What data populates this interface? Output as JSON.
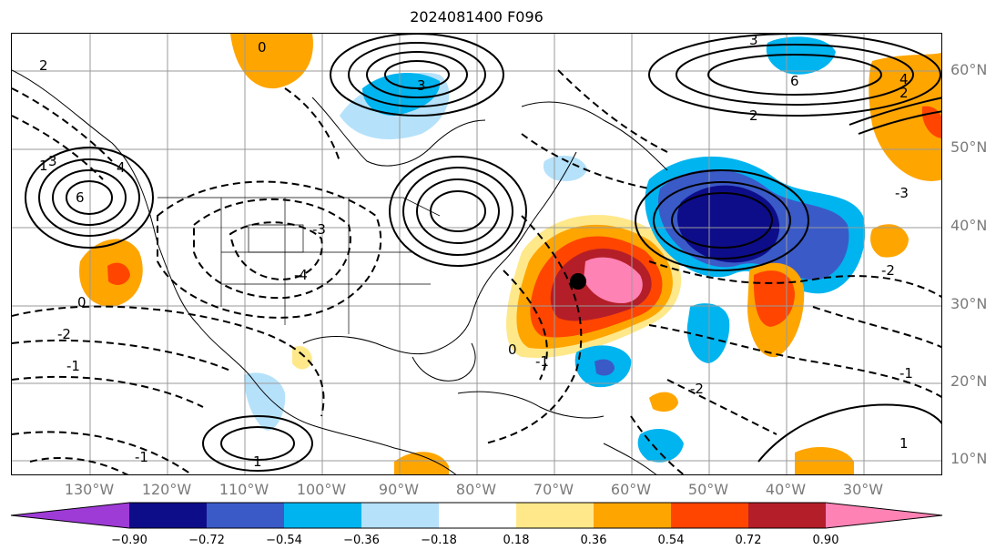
{
  "title": "2024081400 F096",
  "map": {
    "projection": "PlateCarree",
    "gridlines": true,
    "latitude_labels": [
      "60°N",
      "50°N",
      "40°N",
      "30°N",
      "20°N",
      "10°N"
    ],
    "longitude_labels": [
      "130°W",
      "120°W",
      "110°W",
      "100°W",
      "90°W",
      "80°W",
      "70°W",
      "60°W",
      "50°W",
      "40°W",
      "30°W"
    ],
    "contour_labels": [
      "0",
      "3",
      "4",
      "2",
      "1",
      "-1",
      "-2",
      "-3",
      "-4",
      "6",
      "0",
      "3",
      "2",
      "1",
      "-1",
      "4",
      "-2",
      "-3",
      "1",
      "-1",
      "2",
      "-2",
      "0",
      "3",
      "-1",
      "6"
    ],
    "markers": [
      {
        "name": "storm-center",
        "symbol": "filled-circle"
      }
    ]
  },
  "colorbar": {
    "extend": "both",
    "colors": [
      "#9e3bd6",
      "#0d0d8a",
      "#3a5ac8",
      "#00b4f0",
      "#b5e1fa",
      "#ffffff",
      "#ffe88a",
      "#ffa500",
      "#ff4500",
      "#b41e28",
      "#ff82b4"
    ],
    "tick_labels": [
      "−0.90",
      "−0.72",
      "−0.54",
      "−0.36",
      "−0.18",
      "0.18",
      "0.36",
      "0.54",
      "0.72",
      "0.90"
    ]
  }
}
